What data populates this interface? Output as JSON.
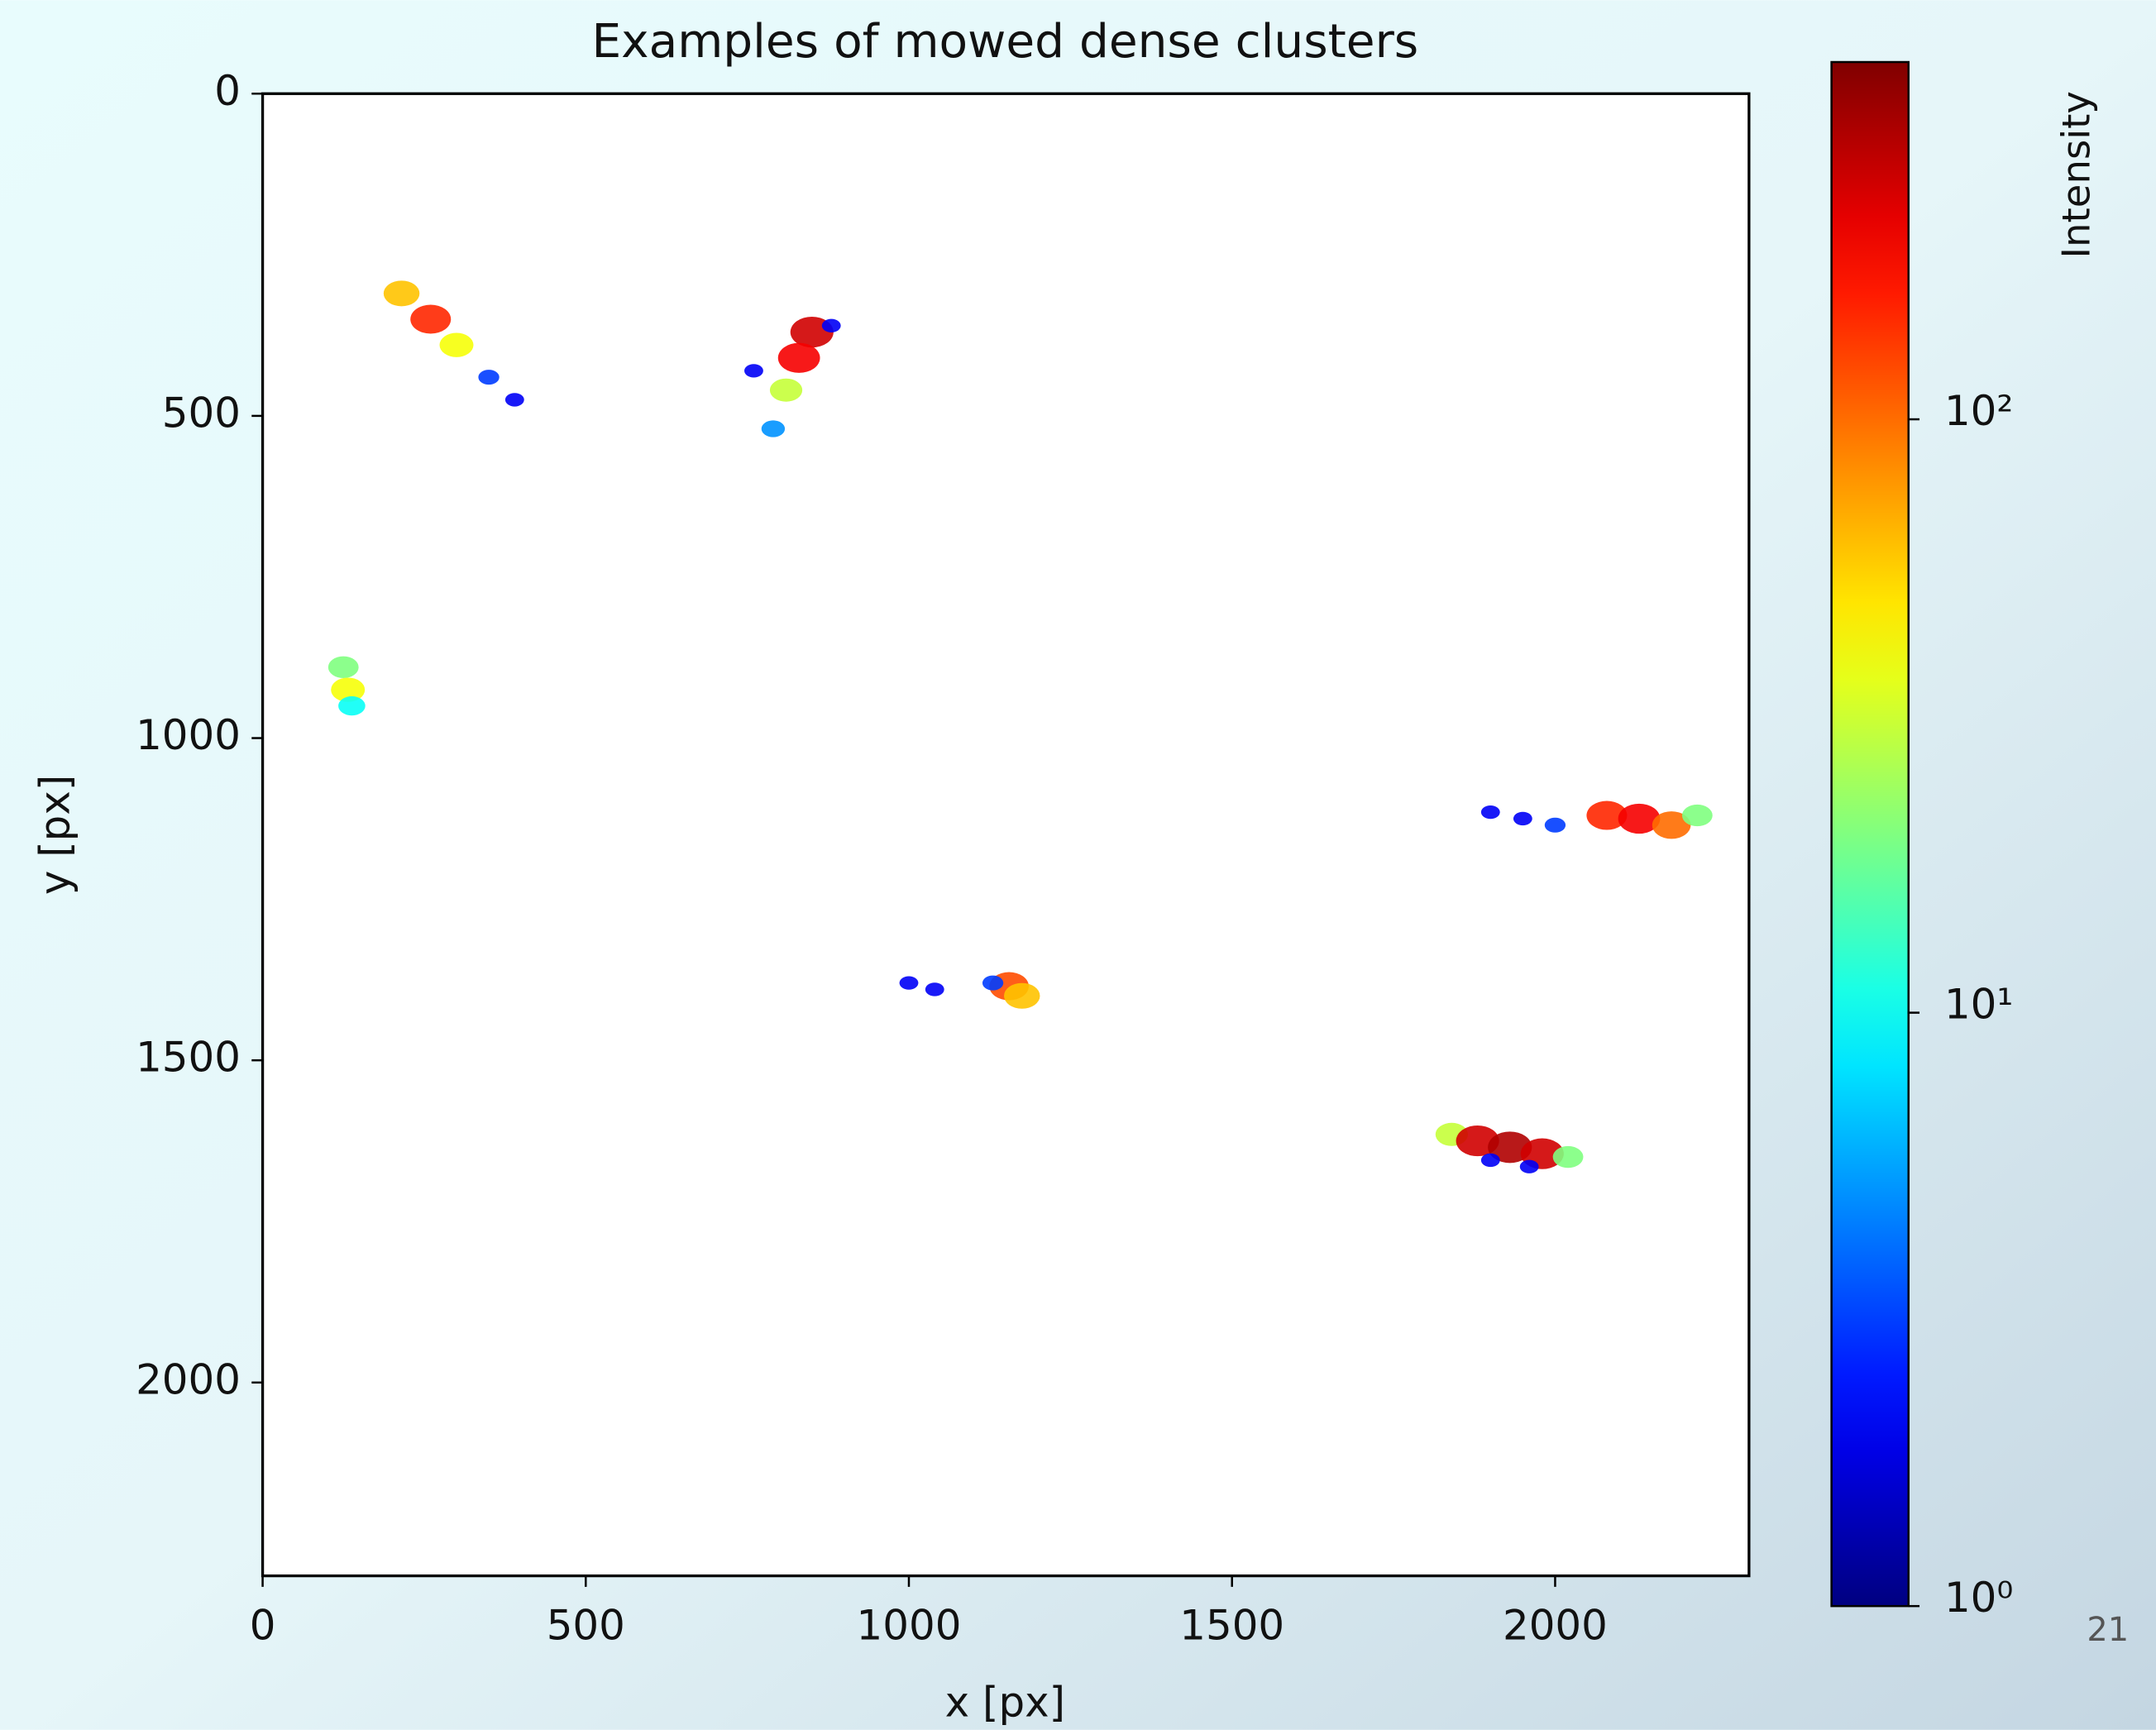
{
  "chart_data": {
    "type": "image",
    "title": "Examples of mowed dense clusters",
    "xlabel": "x [px]",
    "ylabel": "y [px]",
    "xlim": [
      0,
      2300
    ],
    "ylim": [
      2300,
      0
    ],
    "xticks": [
      0,
      500,
      1000,
      1500,
      2000
    ],
    "yticks": [
      0,
      500,
      1000,
      1500,
      2000
    ],
    "colorbar": {
      "label": "Intensity",
      "scale": "log",
      "colormap": "jet",
      "lim": [
        1,
        400
      ],
      "ticks": [
        {
          "value": 1,
          "label": "10⁰"
        },
        {
          "value": 10,
          "label": "10¹"
        },
        {
          "value": 100,
          "label": "10²"
        }
      ]
    },
    "clusters": [
      {
        "x": [
          215,
          260,
          300,
          350,
          390
        ],
        "y": [
          310,
          350,
          390,
          440,
          475
        ],
        "values": [
          60,
          150,
          40,
          3,
          2
        ]
      },
      {
        "x": [
          850,
          830,
          810,
          790,
          880,
          760
        ],
        "y": [
          370,
          410,
          460,
          520,
          360,
          430
        ],
        "values": [
          250,
          200,
          30,
          5,
          2,
          2
        ]
      },
      {
        "x": [
          125,
          132,
          138
        ],
        "y": [
          890,
          925,
          950
        ],
        "values": [
          20,
          40,
          10
        ]
      },
      {
        "x": [
          1155,
          1175,
          1130,
          1000,
          1040
        ],
        "y": [
          1385,
          1400,
          1380,
          1380,
          1390
        ],
        "values": [
          120,
          60,
          3,
          2,
          2
        ]
      },
      {
        "x": [
          2080,
          2130,
          2180,
          2220,
          1950,
          1900,
          2000
        ],
        "y": [
          1120,
          1125,
          1135,
          1120,
          1125,
          1115,
          1135
        ],
        "values": [
          150,
          200,
          100,
          20,
          2,
          2,
          3
        ]
      },
      {
        "x": [
          1840,
          1880,
          1930,
          1980,
          2020,
          1900,
          1960
        ],
        "y": [
          1615,
          1625,
          1635,
          1645,
          1650,
          1655,
          1665
        ],
        "values": [
          30,
          250,
          300,
          250,
          20,
          2,
          2
        ]
      }
    ]
  },
  "page_number": "21"
}
